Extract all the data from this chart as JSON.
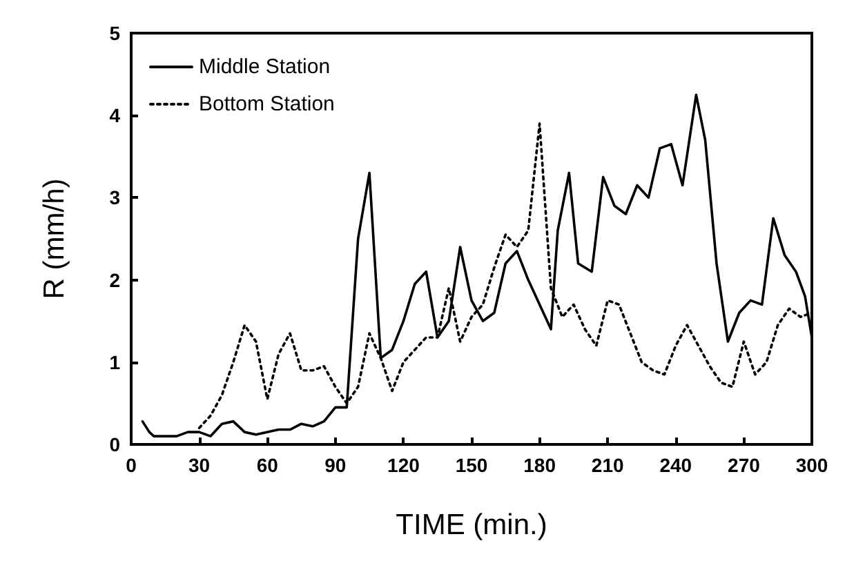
{
  "chart_data": {
    "type": "line",
    "xlabel": "TIME (min.)",
    "ylabel": "R (mm/h)",
    "xlim": [
      0,
      300
    ],
    "xticks": [
      0,
      30,
      60,
      90,
      120,
      150,
      180,
      210,
      240,
      270,
      300
    ],
    "ylim": [
      0,
      5
    ],
    "yticks": [
      0,
      1,
      2,
      3,
      4,
      5
    ],
    "grid": false,
    "legend": "top left",
    "marker": "none",
    "series": [
      {
        "name": "Middle Station",
        "color": "#000000",
        "line_style": "solid",
        "x": [
          5,
          8,
          10,
          20,
          25,
          30,
          35,
          40,
          45,
          50,
          55,
          65,
          70,
          75,
          80,
          85,
          90,
          95,
          100,
          105,
          110,
          115,
          120,
          125,
          130,
          135,
          140,
          145,
          150,
          155,
          160,
          165,
          170,
          175,
          180,
          185,
          188,
          193,
          197,
          203,
          208,
          213,
          218,
          223,
          228,
          233,
          238,
          243,
          249,
          253,
          258,
          263,
          268,
          273,
          278,
          283,
          288,
          293,
          297,
          300
        ],
        "values": [
          0.28,
          0.15,
          0.1,
          0.1,
          0.15,
          0.15,
          0.1,
          0.25,
          0.28,
          0.15,
          0.12,
          0.18,
          0.18,
          0.25,
          0.22,
          0.28,
          0.45,
          0.45,
          2.5,
          3.3,
          1.05,
          1.15,
          1.5,
          1.95,
          2.1,
          1.3,
          1.5,
          2.4,
          1.75,
          1.5,
          1.6,
          2.2,
          2.35,
          2.0,
          1.7,
          1.4,
          2.6,
          3.3,
          2.2,
          2.1,
          3.25,
          2.9,
          2.8,
          3.15,
          3.0,
          3.6,
          3.65,
          3.15,
          4.25,
          3.7,
          2.2,
          1.25,
          1.6,
          1.75,
          1.7,
          2.75,
          2.3,
          2.1,
          1.8,
          1.3
        ]
      },
      {
        "name": "Bottom Station",
        "color": "#000000",
        "line_style": "dotted",
        "x": [
          30,
          35,
          40,
          45,
          50,
          55,
          60,
          65,
          70,
          75,
          80,
          85,
          90,
          95,
          100,
          105,
          110,
          115,
          120,
          125,
          130,
          135,
          140,
          145,
          150,
          155,
          160,
          165,
          170,
          175,
          180,
          185,
          190,
          195,
          200,
          205,
          210,
          215,
          220,
          225,
          230,
          235,
          240,
          245,
          250,
          255,
          260,
          265,
          270,
          275,
          280,
          285,
          290,
          295,
          300
        ],
        "values": [
          0.2,
          0.35,
          0.6,
          1.0,
          1.45,
          1.25,
          0.55,
          1.1,
          1.35,
          0.9,
          0.9,
          0.95,
          0.7,
          0.5,
          0.7,
          1.35,
          1.05,
          0.65,
          1.0,
          1.15,
          1.3,
          1.3,
          1.9,
          1.25,
          1.55,
          1.7,
          2.15,
          2.55,
          2.4,
          2.6,
          3.9,
          1.9,
          1.55,
          1.7,
          1.4,
          1.2,
          1.75,
          1.7,
          1.35,
          1.0,
          0.9,
          0.85,
          1.2,
          1.45,
          1.2,
          0.95,
          0.75,
          0.7,
          1.25,
          0.85,
          1.0,
          1.45,
          1.65,
          1.55,
          1.6
        ]
      }
    ]
  }
}
